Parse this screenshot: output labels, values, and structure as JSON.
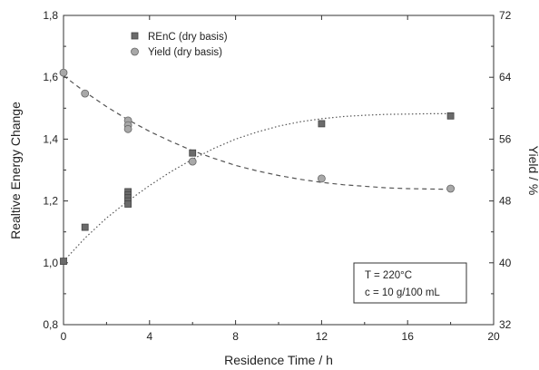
{
  "chart_data": {
    "type": "scatter",
    "xlabel": "Residence Time / h",
    "ylabel": "Realtive Energy Change",
    "y2label": "Yield / %",
    "xlim": [
      0,
      20
    ],
    "ylim": [
      0.8,
      1.8
    ],
    "y2lim": [
      32,
      72
    ],
    "xticks": [
      "0",
      "4",
      "8",
      "12",
      "16",
      "20"
    ],
    "yticks": [
      "0,8",
      "1,0",
      "1,2",
      "1,4",
      "1,6",
      "1,8"
    ],
    "y2ticks": [
      "32",
      "40",
      "48",
      "56",
      "64",
      "72"
    ],
    "grid": false,
    "legend_position": "top-left",
    "series": [
      {
        "name": "REnC (dry basis)",
        "axis": "left",
        "marker": "square",
        "color": "#6b6b6b",
        "x": [
          0,
          1,
          3,
          3,
          3,
          3,
          3,
          6,
          12,
          18
        ],
        "y": [
          1.005,
          1.115,
          1.23,
          1.22,
          1.21,
          1.2,
          1.19,
          1.355,
          1.45,
          1.475
        ]
      },
      {
        "name": "Yield (dry basis)",
        "axis": "right",
        "marker": "circle",
        "color": "#a8a8a8",
        "x": [
          0,
          1,
          3,
          3,
          3,
          6,
          12,
          18
        ],
        "y": [
          64.6,
          61.9,
          58.4,
          57.8,
          57.3,
          53.1,
          50.9,
          49.6
        ]
      }
    ],
    "fits": [
      {
        "axis": "left",
        "style": "dotted",
        "x": [
          0,
          1,
          2,
          3,
          4,
          5,
          6,
          7,
          8,
          9,
          10,
          11,
          12,
          13,
          14,
          15,
          16,
          17,
          18
        ],
        "y": [
          1.005,
          1.08,
          1.145,
          1.2,
          1.25,
          1.295,
          1.335,
          1.37,
          1.4,
          1.423,
          1.442,
          1.456,
          1.466,
          1.473,
          1.477,
          1.48,
          1.481,
          1.482,
          1.482
        ]
      },
      {
        "axis": "right",
        "style": "dashed",
        "x": [
          0,
          1,
          2,
          3,
          4,
          5,
          6,
          7,
          8,
          9,
          10,
          11,
          12,
          13,
          14,
          15,
          16,
          17,
          18
        ],
        "y": [
          64.2,
          62.1,
          60.2,
          58.5,
          57.0,
          55.7,
          54.5,
          53.5,
          52.6,
          51.9,
          51.3,
          50.8,
          50.4,
          50.1,
          49.9,
          49.7,
          49.6,
          49.55,
          49.5
        ]
      }
    ],
    "annotation": {
      "lines": [
        "T = 220°C",
        "c = 10 g/100 mL"
      ]
    }
  }
}
